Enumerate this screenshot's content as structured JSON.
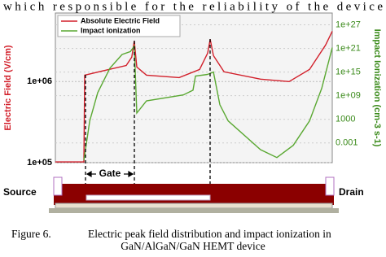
{
  "header": {
    "text": "which responsible for the reliability of the device"
  },
  "chart_data": {
    "type": "line",
    "log_scale": true,
    "grid": true,
    "y_label": "Electric Field (V/cm)",
    "y2_label": "Impact Ionization (cm-3 s-1)",
    "xlim": [
      0,
      100
    ],
    "ylim": [
      100000,
      7000000
    ],
    "yticks": [
      {
        "value": 100000,
        "label": "1e+05"
      },
      {
        "value": 1000000,
        "label": "1e+06"
      }
    ],
    "y2lim": [
      1e-08,
      1e+30
    ],
    "y2ticks": [
      0.001,
      1000,
      {
        "value": 1000000000.0,
        "label": "1e+09"
      },
      {
        "value": 1000000000000000.0,
        "label": "1e+15"
      },
      {
        "value": 1e+21,
        "label": "1e+21"
      },
      {
        "value": 1e+27,
        "label": "1e+27"
      }
    ],
    "legend": "top-left",
    "series": [
      {
        "name": "Absolute Electric Field",
        "color": "#d21f2a",
        "x": [
          0,
          10.3,
          10.6,
          18.2,
          25.6,
          27.6,
          28.5,
          29.4,
          32.9,
          44.7,
          52.1,
          55,
          55.9,
          57.1,
          60.9,
          74.1,
          84.4,
          91.8,
          97.6,
          100
        ],
        "values": [
          102000,
          102000,
          1200000,
          1380000,
          1580000,
          2000000,
          3160000,
          1510000,
          1200000,
          1120000,
          1410000,
          2240000,
          3310000,
          2090000,
          1320000,
          1070000,
          1000000,
          1410000,
          2820000,
          4170000
        ]
      },
      {
        "name": "Impact ionization",
        "color": "#5aa832",
        "axis": "y2",
        "x": [
          10.3,
          12.4,
          15.3,
          19.7,
          24.1,
          27.1,
          28.5,
          29.4,
          32.9,
          46.2,
          49.7,
          50.6,
          55,
          57.1,
          59.4,
          62.4,
          74.1,
          80,
          85.9,
          91.8,
          96.2,
          100
        ],
        "values": [
          4e-08,
          400,
          6000000000.0,
          1e+16,
          3e+19,
          1.6e+20,
          4e+21,
          40000,
          50000000.0,
          1600000000.0,
          25000000000.0,
          100000000000000.0,
          250000000000000.0,
          1000000000000000.0,
          5000000.0,
          400,
          2e-05,
          2e-07,
          0.00025,
          400,
          80000000000.0,
          1.6e+21
        ]
      }
    ]
  },
  "figure": {
    "gate_label": "Gate",
    "source_label": "Source",
    "drain_label": "Drain"
  },
  "caption": {
    "number": "Figure 6.",
    "lines": [
      "Electric peak field distribution and impact ionization in",
      "GaN/AlGaN/GaN HEMT device"
    ]
  }
}
